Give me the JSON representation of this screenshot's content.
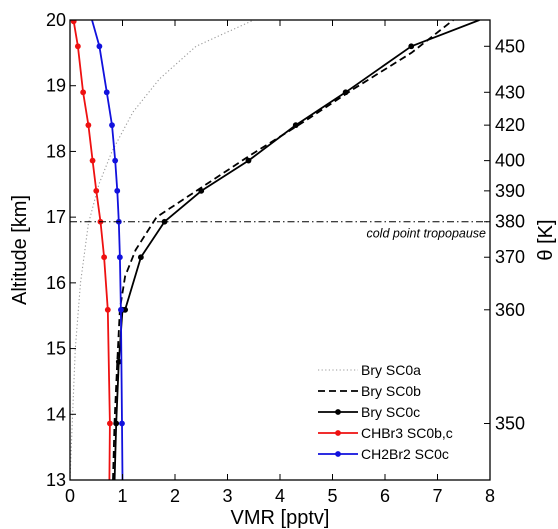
{
  "chart_data": {
    "type": "line",
    "xlabel": "VMR [pptv]",
    "ylabel": "Altitude [km]",
    "y2label": "θ [K]",
    "xlim": [
      0,
      8
    ],
    "ylim": [
      13,
      20
    ],
    "xticks": [
      0,
      1,
      2,
      3,
      4,
      5,
      6,
      7,
      8
    ],
    "yticks": [
      13,
      14,
      15,
      16,
      17,
      18,
      19,
      20
    ],
    "y2ticks": [
      {
        "label": "350",
        "altitude": 13.86
      },
      {
        "label": "360",
        "altitude": 15.59
      },
      {
        "label": "370",
        "altitude": 16.39
      },
      {
        "label": "380",
        "altitude": 16.93
      },
      {
        "label": "390",
        "altitude": 17.4
      },
      {
        "label": "400",
        "altitude": 17.86
      },
      {
        "label": "420",
        "altitude": 18.4
      },
      {
        "label": "430",
        "altitude": 18.9
      },
      {
        "label": "450",
        "altitude": 19.6
      }
    ],
    "grid": false,
    "legend_position": "bottom-right",
    "annotations": [
      {
        "text": "cold point tropopause",
        "altitude": 16.93
      }
    ],
    "series": [
      {
        "name": "Bry SC0a",
        "color": "#999999",
        "style": "dotted",
        "markers": false,
        "x": [
          0.0,
          0.05,
          0.1,
          0.2,
          0.35,
          0.55,
          0.8,
          1.2,
          1.7,
          2.4,
          3.5
        ],
        "y": [
          13,
          14,
          15,
          16,
          16.9,
          17.5,
          18.0,
          18.6,
          19.1,
          19.6,
          20
        ]
      },
      {
        "name": "Bry SC0b",
        "color": "#000000",
        "style": "dashed",
        "markers": false,
        "x": [
          0.82,
          0.85,
          0.9,
          0.95,
          1.05,
          1.25,
          1.65,
          2.5,
          3.45,
          4.45,
          5.4,
          6.5,
          7.3
        ],
        "y": [
          13,
          13.9,
          14.8,
          15.6,
          16.1,
          16.5,
          17.0,
          17.45,
          17.95,
          18.45,
          18.95,
          19.5,
          20
        ]
      },
      {
        "name": "Bry SC0c",
        "color": "#000000",
        "style": "solid",
        "markers": true,
        "x": [
          0.85,
          0.88,
          0.93,
          1.0,
          1.05,
          1.35,
          1.8,
          2.5,
          3.4,
          4.3,
          5.25,
          6.5,
          7.8
        ],
        "y": [
          13,
          13.86,
          14.8,
          15.59,
          15.59,
          16.39,
          16.93,
          17.4,
          17.86,
          18.4,
          18.9,
          19.6,
          20
        ]
      },
      {
        "name": "CHBr3 SC0b,c",
        "color": "#ee1111",
        "style": "solid",
        "markers": true,
        "x": [
          0.75,
          0.76,
          0.72,
          0.65,
          0.58,
          0.5,
          0.43,
          0.35,
          0.25,
          0.15,
          0.07,
          0.02
        ],
        "y": [
          13,
          13.86,
          15.59,
          16.39,
          16.93,
          17.4,
          17.86,
          18.4,
          18.9,
          19.6,
          19.98,
          20
        ]
      },
      {
        "name": "CH2Br2 SC0c",
        "color": "#1111dd",
        "style": "solid",
        "markers": true,
        "x": [
          1.0,
          0.99,
          0.97,
          0.95,
          0.93,
          0.9,
          0.86,
          0.8,
          0.7,
          0.56,
          0.42
        ],
        "y": [
          13,
          13.86,
          15.59,
          16.39,
          16.93,
          17.4,
          17.86,
          18.4,
          18.9,
          19.6,
          20
        ]
      }
    ]
  }
}
